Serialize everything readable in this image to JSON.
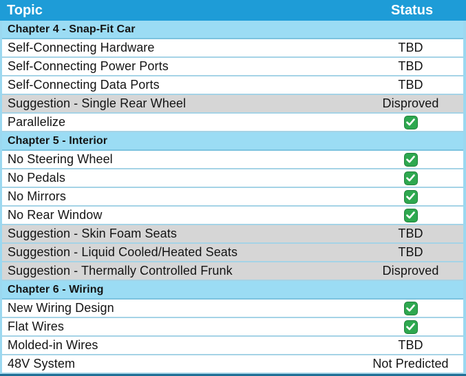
{
  "colors": {
    "header_bg": "#1E9CD7",
    "header_text": "#FFFFFF",
    "chapter_bg": "#9BDCF4",
    "row_bg": "#FFFFFF",
    "suggestion_bg": "#D6D6D6",
    "divider": "#A5D3E6",
    "outer_border": "#9BD8F0",
    "bottom_border": "#1D6E95",
    "check_green": "#2EA84F",
    "text": "#141414"
  },
  "icons": {
    "check": "check-icon"
  },
  "chart_data": {
    "type": "table",
    "columns": [
      "Topic",
      "Status"
    ],
    "status_values_seen": [
      "TBD",
      "Disproved",
      "Not Predicted",
      "check"
    ],
    "rows": [
      {
        "topic": "Chapter 4 - Snap-Fit Car",
        "status": "",
        "kind": "chapter"
      },
      {
        "topic": "Self-Connecting Hardware",
        "status": "TBD",
        "kind": "item",
        "shade": "white"
      },
      {
        "topic": "Self-Connecting Power Ports",
        "status": "TBD",
        "kind": "item",
        "shade": "white"
      },
      {
        "topic": "Self-Connecting Data Ports",
        "status": "TBD",
        "kind": "item",
        "shade": "white"
      },
      {
        "topic": "Suggestion - Single Rear Wheel",
        "status": "Disproved",
        "kind": "item",
        "shade": "gray"
      },
      {
        "topic": "Parallelize",
        "status": "check",
        "kind": "item",
        "shade": "white"
      },
      {
        "topic": "Chapter 5 - Interior",
        "status": "",
        "kind": "chapter"
      },
      {
        "topic": "No Steering Wheel",
        "status": "check",
        "kind": "item",
        "shade": "white"
      },
      {
        "topic": "No Pedals",
        "status": "check",
        "kind": "item",
        "shade": "white"
      },
      {
        "topic": "No Mirrors",
        "status": "check",
        "kind": "item",
        "shade": "white"
      },
      {
        "topic": "No Rear Window",
        "status": "check",
        "kind": "item",
        "shade": "white"
      },
      {
        "topic": "Suggestion - Skin Foam Seats",
        "status": "TBD",
        "kind": "item",
        "shade": "gray"
      },
      {
        "topic": "Suggestion - Liquid Cooled/Heated Seats",
        "status": "TBD",
        "kind": "item",
        "shade": "gray"
      },
      {
        "topic": "Suggestion - Thermally Controlled Frunk",
        "status": "Disproved",
        "kind": "item",
        "shade": "gray"
      },
      {
        "topic": "Chapter 6 - Wiring",
        "status": "",
        "kind": "chapter"
      },
      {
        "topic": "New Wiring Design",
        "status": "check",
        "kind": "item",
        "shade": "white"
      },
      {
        "topic": "Flat Wires",
        "status": "check",
        "kind": "item",
        "shade": "white"
      },
      {
        "topic": "Molded-in Wires",
        "status": "TBD",
        "kind": "item",
        "shade": "white"
      },
      {
        "topic": "48V System",
        "status": "Not Predicted",
        "kind": "item",
        "shade": "white"
      }
    ]
  }
}
